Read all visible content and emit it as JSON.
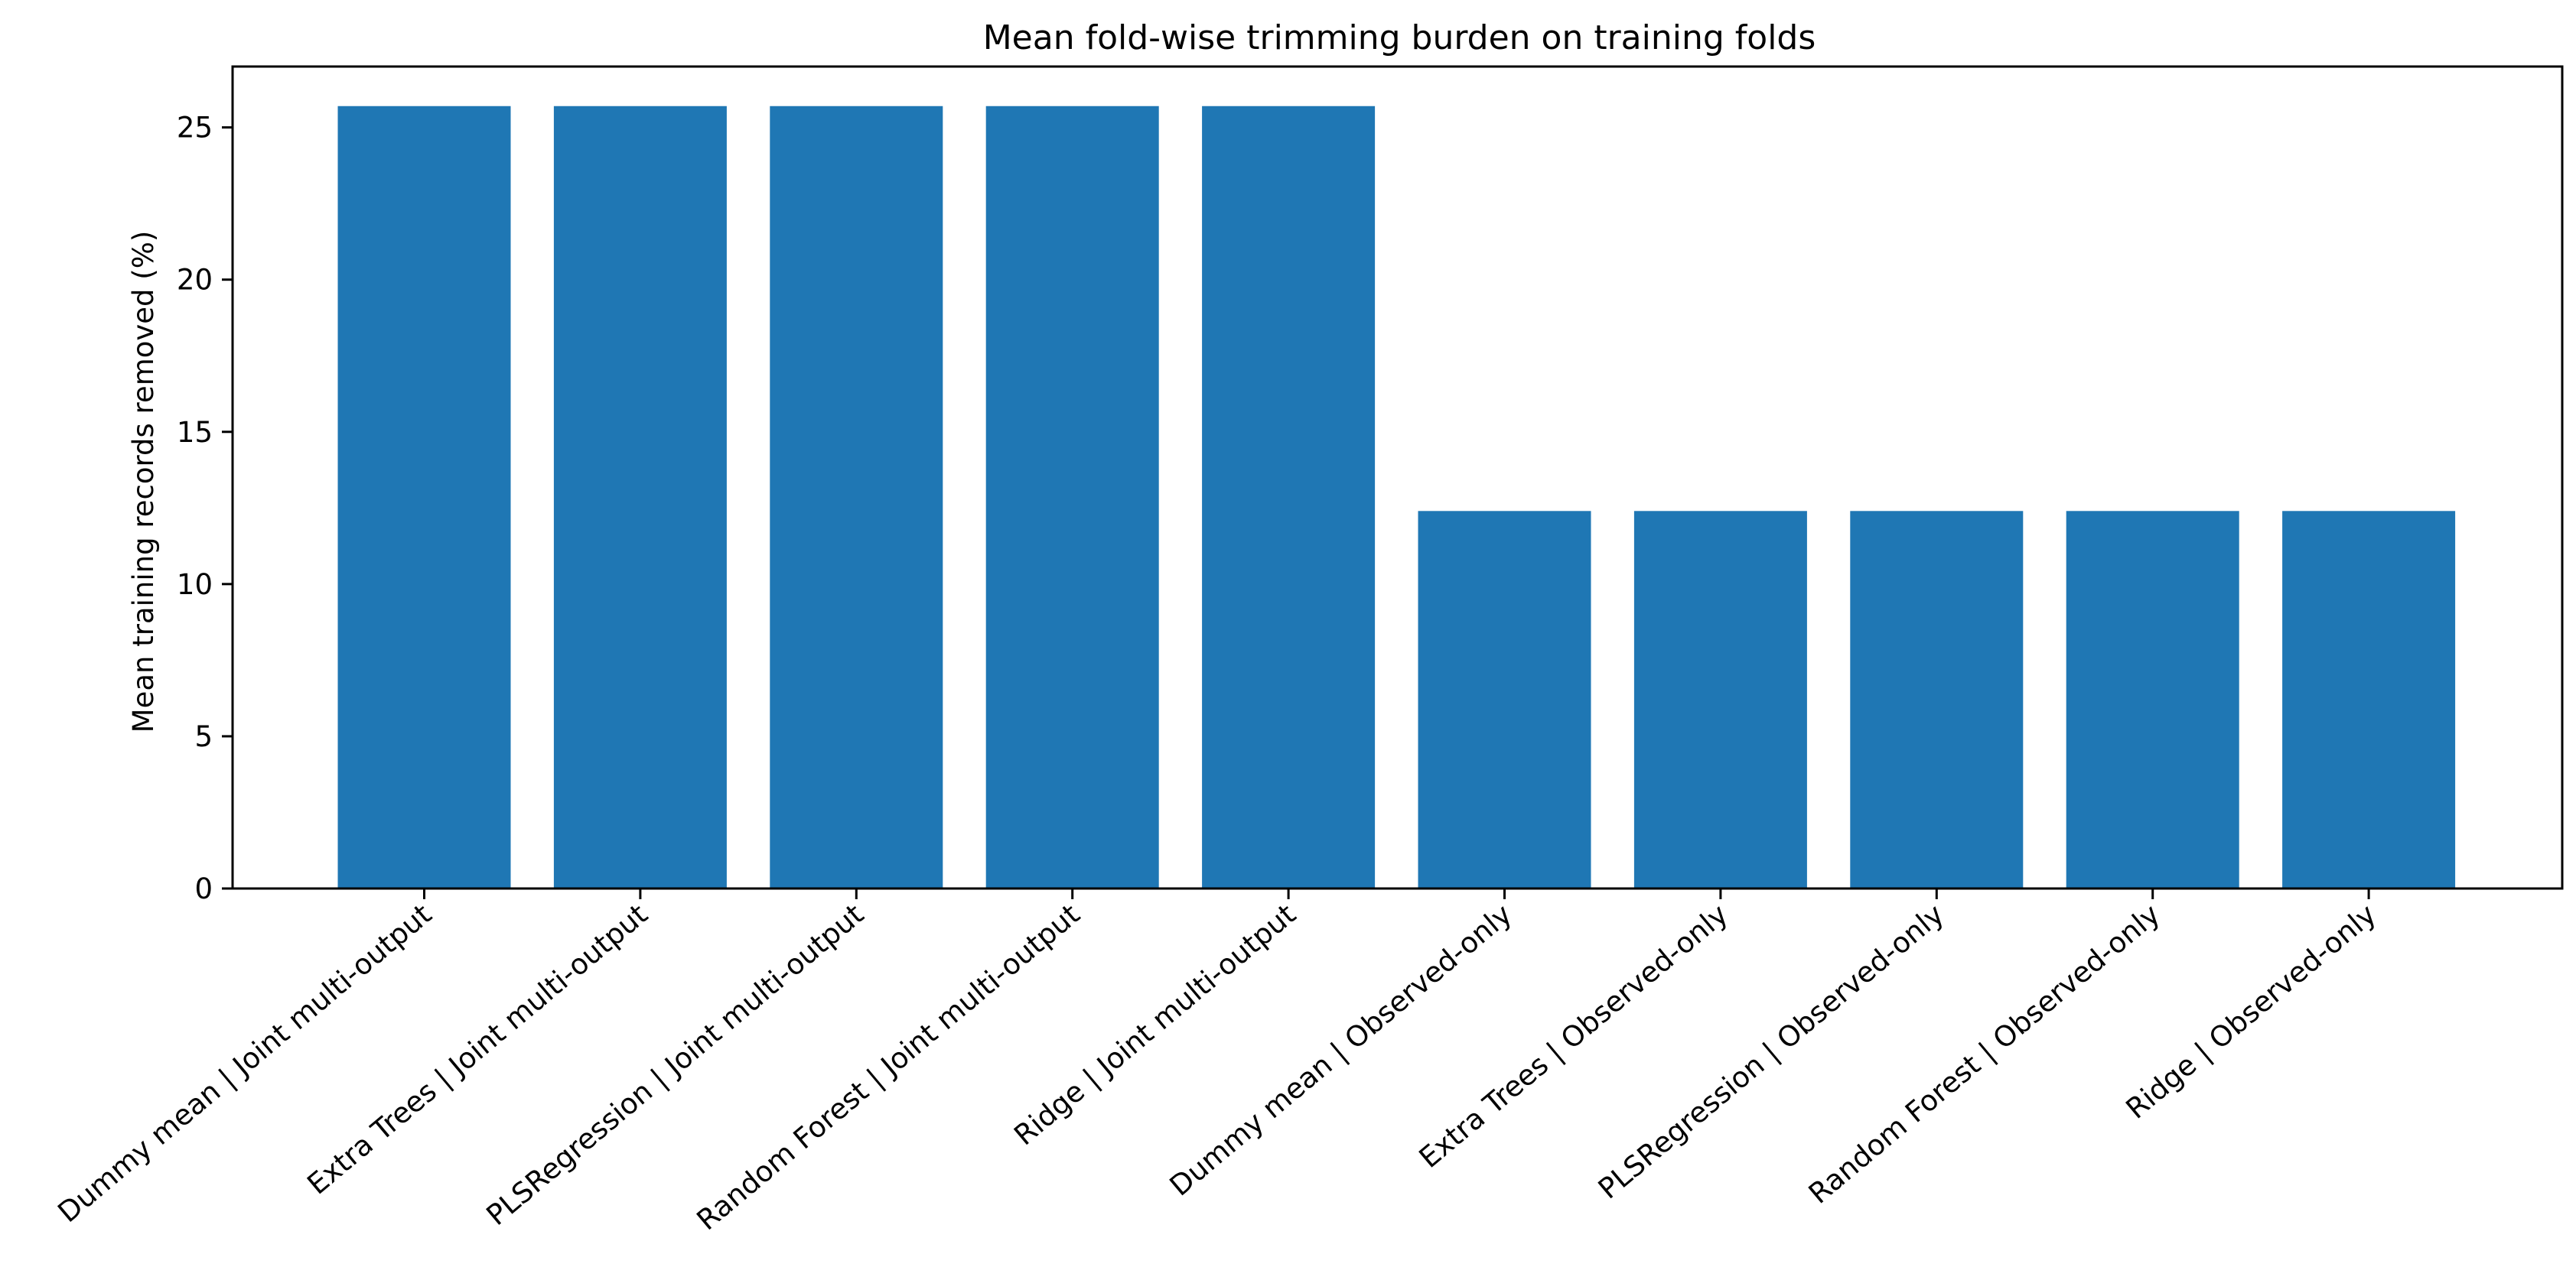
{
  "chart_data": {
    "type": "bar",
    "title": "Mean fold-wise trimming burden on training folds",
    "xlabel": "",
    "ylabel": "Mean training records removed (%)",
    "categories": [
      "Dummy mean | Joint multi-output",
      "Extra Trees | Joint multi-output",
      "PLSRegression | Joint multi-output",
      "Random Forest | Joint multi-output",
      "Ridge | Joint multi-output",
      "Dummy mean | Observed-only",
      "Extra Trees | Observed-only",
      "PLSRegression | Observed-only",
      "Random Forest | Observed-only",
      "Ridge | Observed-only"
    ],
    "values": [
      25.7,
      25.7,
      25.7,
      25.7,
      25.7,
      12.4,
      12.4,
      12.4,
      12.4,
      12.4
    ],
    "ylim": [
      0,
      27
    ],
    "yticks": [
      0,
      5,
      10,
      15,
      20,
      25
    ],
    "grid": false,
    "legend": "none",
    "bar_color": "#1f77b4"
  }
}
